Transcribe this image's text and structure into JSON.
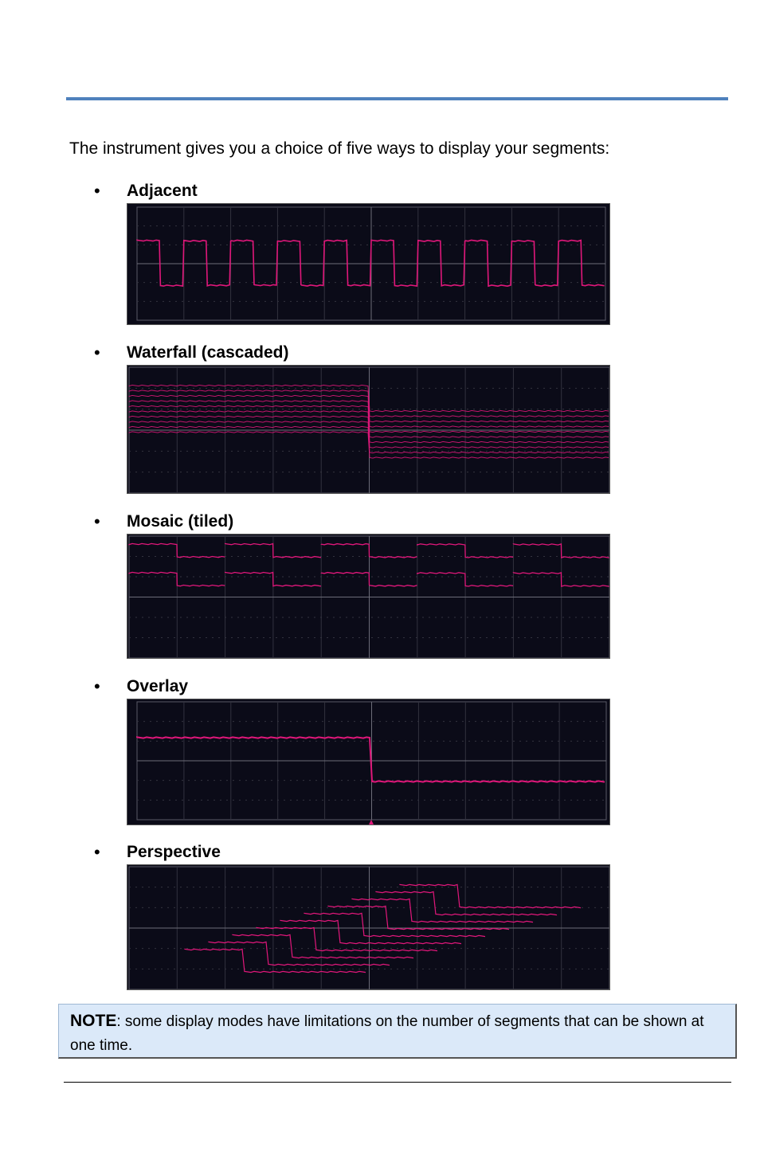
{
  "intro": "The instrument gives you a choice of five ways to display your segments:",
  "modes": [
    {
      "label": "Adjacent"
    },
    {
      "label": "Waterfall (cascaded)"
    },
    {
      "label": "Mosaic (tiled)"
    },
    {
      "label": "Overlay"
    },
    {
      "label": "Perspective"
    }
  ],
  "bullet_char": "•",
  "note": {
    "bold": "NOTE",
    "text": ": some display modes have limitations on the number of segments that can be shown at one time."
  },
  "colors": {
    "rule_accent": "#4f81bd",
    "trace": "#e0177a",
    "screen": "#0b0b18",
    "note_background": "#dbe9f9"
  }
}
